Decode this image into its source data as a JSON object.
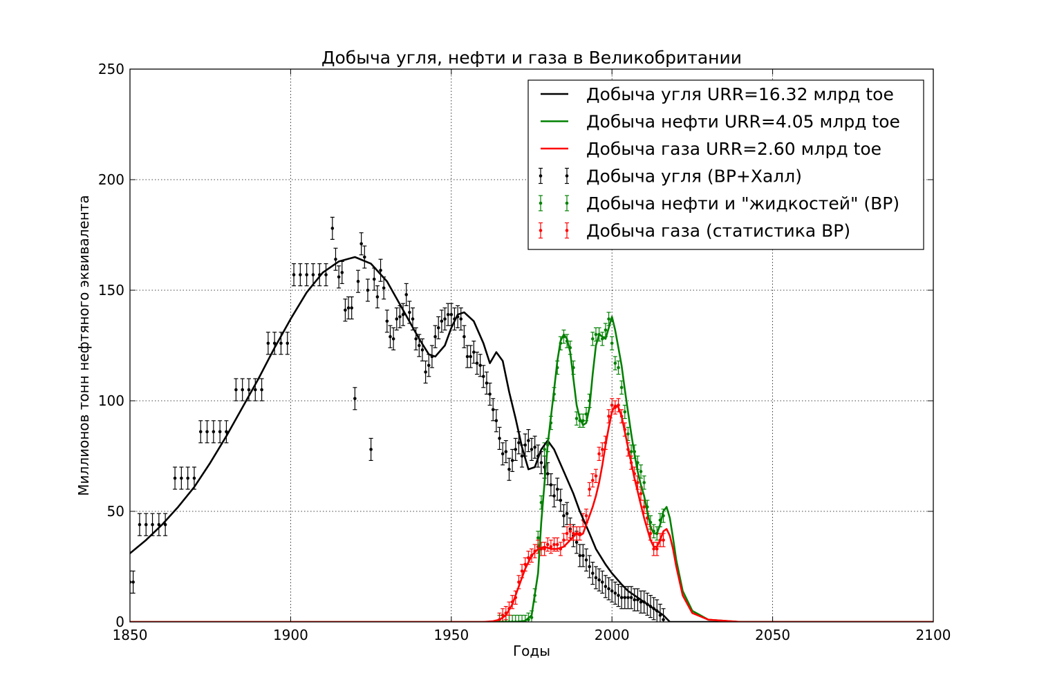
{
  "chart_data": {
    "type": "line",
    "title": "Добыча угля, нефти и газа в Великобритании",
    "xlabel": "Годы",
    "ylabel": "Миллионов тонн нефтяного эквивалента",
    "xlim": [
      1850,
      2100
    ],
    "ylim": [
      0,
      250
    ],
    "xticks": [
      1850,
      1900,
      1950,
      2000,
      2050,
      2100
    ],
    "yticks": [
      0,
      50,
      100,
      150,
      200,
      250
    ],
    "grid": true,
    "legend_position": "top-right",
    "series": [
      {
        "name": "Добыча угля URR=16.32 млрд toe",
        "kind": "line",
        "color": "#000000",
        "x": [
          1850,
          1855,
          1860,
          1865,
          1870,
          1875,
          1880,
          1885,
          1890,
          1895,
          1900,
          1905,
          1910,
          1915,
          1920,
          1925,
          1930,
          1935,
          1940,
          1943,
          1945,
          1948,
          1950,
          1952,
          1954,
          1957,
          1960,
          1962,
          1964,
          1966,
          1968,
          1970,
          1972,
          1974,
          1976,
          1978,
          1980,
          1982,
          1985,
          1988,
          1990,
          1993,
          1995,
          1998,
          2000,
          2003,
          2005,
          2008,
          2010,
          2012,
          2014,
          2016,
          2018,
          2020,
          2030,
          2050,
          2100
        ],
        "y": [
          31,
          37,
          44,
          52,
          61,
          72,
          84,
          97,
          110,
          124,
          137,
          149,
          158,
          163,
          165,
          162,
          154,
          141,
          128,
          121,
          120,
          125,
          133,
          139,
          140,
          136,
          126,
          117,
          122,
          118,
          104,
          92,
          79,
          69,
          70,
          78,
          82,
          78,
          68,
          58,
          50,
          40,
          33,
          26,
          22,
          17,
          14,
          11,
          9,
          7,
          5,
          3,
          0,
          0,
          0,
          0,
          0
        ]
      },
      {
        "name": "Добыча нефти URR=4.05 млрд toe",
        "kind": "line",
        "color": "#008000",
        "x": [
          1850,
          1960,
          1965,
          1970,
          1973,
          1975,
          1977,
          1978,
          1980,
          1982,
          1983,
          1984,
          1985,
          1986,
          1987,
          1988,
          1989,
          1990,
          1991,
          1992,
          1993,
          1994,
          1995,
          1996,
          1997,
          1998,
          1999,
          2000,
          2001,
          2002,
          2003,
          2004,
          2005,
          2006,
          2007,
          2008,
          2009,
          2010,
          2011,
          2012,
          2013,
          2014,
          2015,
          2016,
          2017,
          2018,
          2019,
          2020,
          2022,
          2025,
          2030,
          2040,
          2050,
          2100
        ],
        "y": [
          0,
          0,
          0,
          0,
          0.5,
          3,
          22,
          45,
          80,
          105,
          118,
          127,
          130,
          128,
          122,
          110,
          98,
          92,
          89,
          90,
          97,
          112,
          125,
          130,
          129,
          128,
          133,
          138,
          132,
          124,
          116,
          105,
          95,
          85,
          76,
          68,
          62,
          57,
          50,
          43,
          40,
          40,
          44,
          50,
          52,
          47,
          38,
          28,
          14,
          5,
          1,
          0,
          0,
          0
        ]
      },
      {
        "name": "Добыча газа URR=2.60 млрд toe",
        "kind": "line",
        "color": "#ff0000",
        "x": [
          1850,
          1960,
          1963,
          1965,
          1967,
          1969,
          1971,
          1973,
          1975,
          1977,
          1979,
          1981,
          1983,
          1985,
          1987,
          1989,
          1990,
          1991,
          1992,
          1993,
          1994,
          1995,
          1996,
          1997,
          1998,
          1999,
          2000,
          2001,
          2002,
          2003,
          2004,
          2005,
          2006,
          2007,
          2008,
          2009,
          2010,
          2011,
          2012,
          2013,
          2014,
          2015,
          2016,
          2017,
          2018,
          2019,
          2020,
          2022,
          2025,
          2030,
          2040,
          2050,
          2100
        ],
        "y": [
          0,
          0,
          0.3,
          1,
          3,
          8,
          16,
          24,
          30,
          33,
          34,
          33,
          33,
          34,
          37,
          40,
          39,
          40,
          44,
          48,
          52,
          57,
          63,
          71,
          80,
          88,
          95,
          98,
          97,
          93,
          86,
          79,
          72,
          65,
          59,
          53,
          47,
          42,
          37,
          34,
          34,
          37,
          41,
          42,
          39,
          33,
          25,
          12,
          4,
          1,
          0,
          0,
          0
        ]
      },
      {
        "name": "Добыча угля (BP+Халл)",
        "kind": "errorbar",
        "color": "#000000",
        "x": [
          1850,
          1851,
          1853,
          1855,
          1857,
          1859,
          1861,
          1864,
          1866,
          1868,
          1870,
          1872,
          1874,
          1876,
          1878,
          1880,
          1883,
          1885,
          1887,
          1889,
          1891,
          1893,
          1895,
          1897,
          1899,
          1901,
          1903,
          1905,
          1907,
          1909,
          1911,
          1913,
          1914,
          1915,
          1916,
          1917,
          1918,
          1919,
          1920,
          1921,
          1922,
          1923,
          1924,
          1925,
          1926,
          1927,
          1928,
          1929,
          1930,
          1931,
          1932,
          1933,
          1934,
          1935,
          1936,
          1937,
          1938,
          1939,
          1940,
          1941,
          1942,
          1943,
          1944,
          1945,
          1946,
          1947,
          1948,
          1949,
          1950,
          1951,
          1952,
          1953,
          1954,
          1955,
          1956,
          1957,
          1958,
          1959,
          1960,
          1961,
          1962,
          1963,
          1964,
          1965,
          1966,
          1967,
          1968,
          1969,
          1970,
          1971,
          1972,
          1973,
          1974,
          1975,
          1976,
          1977,
          1978,
          1979,
          1980,
          1981,
          1982,
          1983,
          1984,
          1985,
          1986,
          1987,
          1988,
          1989,
          1990,
          1991,
          1992,
          1993,
          1994,
          1995,
          1996,
          1997,
          1998,
          1999,
          2000,
          2001,
          2002,
          2003,
          2004,
          2005,
          2006,
          2007,
          2008,
          2009,
          2010,
          2011,
          2012,
          2013,
          2014,
          2015,
          2016
        ],
        "y": [
          18,
          18,
          44,
          44,
          44,
          44,
          44,
          65,
          65,
          65,
          65,
          86,
          86,
          86,
          86,
          86,
          105,
          105,
          105,
          105,
          105,
          126,
          126,
          126,
          126,
          157,
          157,
          157,
          157,
          157,
          157,
          178,
          164,
          156,
          158,
          141,
          142,
          142,
          101,
          154,
          171,
          165,
          150,
          78,
          155,
          147,
          159,
          151,
          136,
          129,
          128,
          137,
          138,
          139,
          148,
          140,
          137,
          128,
          125,
          123,
          113,
          116,
          120,
          129,
          133,
          136,
          137,
          139,
          139,
          137,
          138,
          137,
          129,
          120,
          120,
          122,
          117,
          116,
          111,
          108,
          103,
          96,
          91,
          83,
          76,
          77,
          69,
          73,
          78,
          81,
          75,
          80,
          82,
          78,
          79,
          75,
          72,
          70,
          67,
          62,
          57,
          60,
          55,
          48,
          49,
          42,
          39,
          36,
          30,
          30,
          28,
          25,
          22,
          20,
          19,
          18,
          16,
          15,
          14,
          13,
          12,
          11,
          11,
          11,
          11,
          10,
          10,
          9,
          9,
          8,
          7,
          6,
          5,
          3,
          1
        ],
        "err": 5
      },
      {
        "name": "Добыча нефти и \"жидкостей\" (BP)",
        "kind": "errorbar",
        "color": "#008000",
        "x": [
          1965,
          1966,
          1967,
          1968,
          1969,
          1970,
          1971,
          1972,
          1973,
          1974,
          1975,
          1976,
          1977,
          1978,
          1979,
          1980,
          1981,
          1982,
          1983,
          1984,
          1985,
          1986,
          1987,
          1988,
          1989,
          1990,
          1991,
          1992,
          1993,
          1994,
          1995,
          1996,
          1997,
          1998,
          1999,
          2000,
          2001,
          2002,
          2003,
          2004,
          2005,
          2006,
          2007,
          2008,
          2009,
          2010,
          2011,
          2012,
          2013,
          2014,
          2015,
          2016
        ],
        "y": [
          0,
          0,
          0,
          0,
          0,
          0,
          0,
          0,
          0,
          1,
          2,
          12,
          38,
          54,
          78,
          80,
          90,
          103,
          115,
          126,
          129,
          127,
          124,
          115,
          92,
          91,
          91,
          94,
          100,
          128,
          130,
          130,
          128,
          132,
          137,
          126,
          117,
          115,
          106,
          95,
          85,
          77,
          77,
          72,
          68,
          63,
          52,
          45,
          41,
          40,
          46,
          48
        ],
        "err": 3
      },
      {
        "name": "Добыча газа (статистика BP)",
        "kind": "errorbar",
        "color": "#ff0000",
        "x": [
          1965,
          1966,
          1967,
          1968,
          1969,
          1970,
          1971,
          1972,
          1973,
          1974,
          1975,
          1976,
          1977,
          1978,
          1979,
          1980,
          1981,
          1982,
          1983,
          1984,
          1985,
          1986,
          1987,
          1988,
          1989,
          1990,
          1991,
          1992,
          1993,
          1994,
          1995,
          1996,
          1997,
          1998,
          1999,
          2000,
          2001,
          2002,
          2003,
          2004,
          2005,
          2006,
          2007,
          2008,
          2009,
          2010,
          2011,
          2012,
          2013,
          2014,
          2015,
          2016
        ],
        "y": [
          1,
          3,
          4,
          6,
          9,
          11,
          18,
          23,
          26,
          29,
          30,
          32,
          34,
          33,
          33,
          35,
          34,
          35,
          35,
          33,
          37,
          40,
          41,
          40,
          40,
          40,
          46,
          48,
          60,
          64,
          66,
          76,
          78,
          81,
          93,
          98,
          97,
          98,
          93,
          87,
          78,
          72,
          67,
          63,
          58,
          52,
          47,
          40,
          33,
          33,
          37,
          37
        ],
        "err": 3
      }
    ]
  }
}
